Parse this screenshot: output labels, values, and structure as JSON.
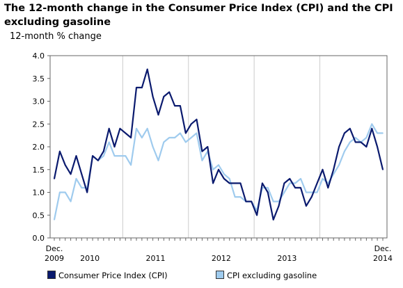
{
  "chart_data": {
    "type": "line",
    "title": "The 12-month change in the Consumer Price Index (CPI) and the CPI excluding gasoline",
    "ylabel": "12-month % change",
    "xlabel": "",
    "ylim": [
      0,
      4
    ],
    "yticks": [
      "0.0",
      "0.5",
      "1.0",
      "1.5",
      "2.0",
      "2.5",
      "3.0",
      "3.5",
      "4.0"
    ],
    "x_axis_labels": [
      {
        "line1": "Dec.",
        "line2": "2009",
        "month_index": 0
      },
      {
        "line1": "",
        "line2": "2010",
        "month_index": 6.5
      },
      {
        "line1": "",
        "line2": "2011",
        "month_index": 18.5
      },
      {
        "line1": "",
        "line2": "2012",
        "month_index": 30.5
      },
      {
        "line1": "",
        "line2": "2013",
        "month_index": 42.5
      },
      {
        "line1": "Dec.",
        "line2": "2014",
        "month_index": 60
      }
    ],
    "x": [
      "2009-12",
      "2010-01",
      "2010-02",
      "2010-03",
      "2010-04",
      "2010-05",
      "2010-06",
      "2010-07",
      "2010-08",
      "2010-09",
      "2010-10",
      "2010-11",
      "2010-12",
      "2011-01",
      "2011-02",
      "2011-03",
      "2011-04",
      "2011-05",
      "2011-06",
      "2011-07",
      "2011-08",
      "2011-09",
      "2011-10",
      "2011-11",
      "2011-12",
      "2012-01",
      "2012-02",
      "2012-03",
      "2012-04",
      "2012-05",
      "2012-06",
      "2012-07",
      "2012-08",
      "2012-09",
      "2012-10",
      "2012-11",
      "2012-12",
      "2013-01",
      "2013-02",
      "2013-03",
      "2013-04",
      "2013-05",
      "2013-06",
      "2013-07",
      "2013-08",
      "2013-09",
      "2013-10",
      "2013-11",
      "2013-12",
      "2014-01",
      "2014-02",
      "2014-03",
      "2014-04",
      "2014-05",
      "2014-06",
      "2014-07",
      "2014-08",
      "2014-09",
      "2014-10",
      "2014-11",
      "2014-12"
    ],
    "series": [
      {
        "name": "Consumer Price Index (CPI)",
        "color": "#0a1a6e",
        "values": [
          1.3,
          1.9,
          1.6,
          1.4,
          1.8,
          1.4,
          1.0,
          1.8,
          1.7,
          1.9,
          2.4,
          2.0,
          2.4,
          2.3,
          2.2,
          3.3,
          3.3,
          3.7,
          3.1,
          2.7,
          3.1,
          3.2,
          2.9,
          2.9,
          2.3,
          2.5,
          2.6,
          1.9,
          2.0,
          1.2,
          1.5,
          1.3,
          1.2,
          1.2,
          1.2,
          0.8,
          0.8,
          0.5,
          1.2,
          1.0,
          0.4,
          0.7,
          1.2,
          1.3,
          1.1,
          1.1,
          0.7,
          0.9,
          1.2,
          1.5,
          1.1,
          1.5,
          2.0,
          2.3,
          2.4,
          2.1,
          2.1,
          2.0,
          2.4,
          2.0,
          1.5
        ]
      },
      {
        "name": "CPI excluding gasoline",
        "color": "#9fcbee",
        "values": [
          0.4,
          1.0,
          1.0,
          0.8,
          1.3,
          1.1,
          1.1,
          1.8,
          1.7,
          1.8,
          2.1,
          1.8,
          1.8,
          1.8,
          1.6,
          2.4,
          2.2,
          2.4,
          2.0,
          1.7,
          2.1,
          2.2,
          2.2,
          2.3,
          2.1,
          2.2,
          2.3,
          1.7,
          1.9,
          1.5,
          1.6,
          1.4,
          1.3,
          0.9,
          0.9,
          0.8,
          0.8,
          0.6,
          1.1,
          1.1,
          0.8,
          0.8,
          1.0,
          1.2,
          1.2,
          1.3,
          1.0,
          1.0,
          1.0,
          1.3,
          1.2,
          1.4,
          1.6,
          1.9,
          2.1,
          2.2,
          2.1,
          2.2,
          2.5,
          2.3,
          2.3
        ]
      }
    ],
    "grid": {
      "horizontal": false,
      "vertical": true
    },
    "legend_position": "bottom"
  }
}
